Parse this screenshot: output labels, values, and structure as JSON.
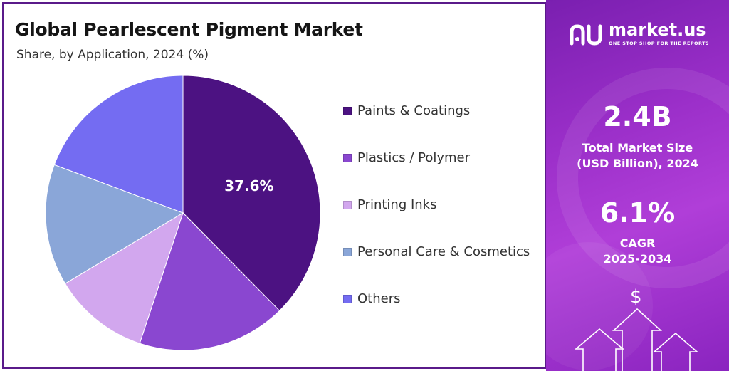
{
  "chart_data": {
    "type": "pie",
    "title": "Global Pearlescent Pigment Market",
    "subtitle": "Share, by Application, 2024 (%)",
    "start_angle_deg": 0,
    "direction": "clockwise",
    "slices": [
      {
        "label": "Paints & Coatings",
        "value": 37.6,
        "color": "#4c1282",
        "data_label": "37.6%"
      },
      {
        "label": "Plastics / Polymer",
        "value": 17.5,
        "color": "#8a47d0",
        "data_label": ""
      },
      {
        "label": "Printing Inks",
        "value": 11.3,
        "color": "#d2a7ee",
        "data_label": ""
      },
      {
        "label": "Personal Care & Cosmetics",
        "value": 14.3,
        "color": "#8aa6d8",
        "data_label": ""
      },
      {
        "label": "Others",
        "value": 19.3,
        "color": "#746cf2",
        "data_label": ""
      }
    ],
    "legend_position": "right"
  },
  "brand": {
    "name": "market.us",
    "tagline": "ONE STOP SHOP FOR THE REPORTS"
  },
  "metrics": {
    "market_size_value": "2.4B",
    "market_size_label_1": "Total Market Size",
    "market_size_label_2": "(USD Billion), 2024",
    "cagr_value": "6.1%",
    "cagr_label_1": "CAGR",
    "cagr_label_2": "2025-2034"
  },
  "decor": {
    "dollar_symbol": "$"
  }
}
